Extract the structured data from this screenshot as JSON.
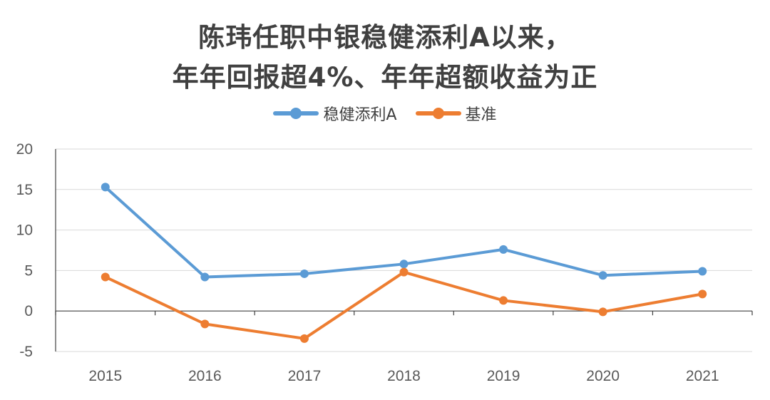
{
  "title": [
    "陈玮任职中银稳健添利A以来，",
    "年年回报超4%、年年超额收益为正"
  ],
  "chart_data": {
    "type": "line",
    "title": "陈玮任职中银稳健添利A以来，年年回报超4%、年年超额收益为正",
    "x": [
      "2015",
      "2016",
      "2017",
      "2018",
      "2019",
      "2020",
      "2021"
    ],
    "series": [
      {
        "name": "稳健添利A",
        "color": "#5b9bd5",
        "values": [
          15.3,
          4.2,
          4.6,
          5.8,
          7.6,
          4.4,
          4.9
        ]
      },
      {
        "name": "基准",
        "color": "#ed7d31",
        "values": [
          4.2,
          -1.6,
          -3.4,
          4.8,
          1.3,
          -0.1,
          2.1
        ]
      }
    ],
    "ylim": [
      -5,
      20
    ],
    "yticks": [
      "20",
      "15",
      "10",
      "5",
      "0",
      "-5"
    ],
    "grid": true,
    "legend": "top-center",
    "xlabel": "",
    "ylabel": ""
  }
}
